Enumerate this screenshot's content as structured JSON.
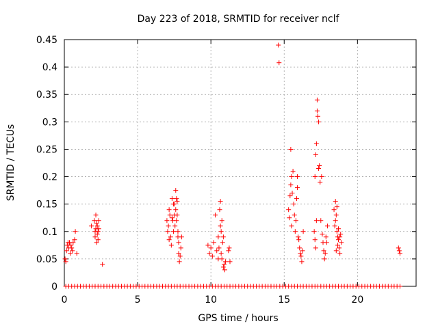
{
  "chart_data": {
    "type": "scatter",
    "title": "Day 223 of 2018, SRMTID for receiver nclf",
    "xlabel": "GPS time / hours",
    "ylabel": "SRMTID / TECUs",
    "xlim": [
      0,
      24
    ],
    "ylim": [
      0,
      0.45
    ],
    "grid": true,
    "marker": "+",
    "marker_color": "#ff0000",
    "x_ticks": [
      0,
      5,
      10,
      15,
      20
    ],
    "x_tick_labels": [
      "0",
      "5",
      "10",
      "15",
      "20"
    ],
    "y_ticks": [
      0,
      0.05,
      0.1,
      0.15,
      0.2,
      0.25,
      0.3,
      0.35,
      0.4,
      0.45
    ],
    "y_tick_labels": [
      "0",
      "0.05",
      "0.1",
      "0.15",
      "0.2",
      "0.25",
      "0.3",
      "0.35",
      "0.4",
      "0.45"
    ],
    "series": [
      {
        "name": "SRMTID",
        "x": [
          0.05,
          0.1,
          0.15,
          0.2,
          0.25,
          0.3,
          0.35,
          0.4,
          0.45,
          0.5,
          0.55,
          0.6,
          0.7,
          0.75,
          0.85,
          1.85,
          2.05,
          2.1,
          2.1,
          2.15,
          2.15,
          2.2,
          2.2,
          2.25,
          2.25,
          2.3,
          2.3,
          2.35,
          2.35,
          2.6,
          7.0,
          7.05,
          7.1,
          7.15,
          7.15,
          7.2,
          7.25,
          7.3,
          7.35,
          7.4,
          7.45,
          7.5,
          7.5,
          7.55,
          7.6,
          7.6,
          7.65,
          7.65,
          7.7,
          7.7,
          7.75,
          7.75,
          7.8,
          7.8,
          7.85,
          7.9,
          7.95,
          8.0,
          7.35,
          7.45,
          9.8,
          9.9,
          10.0,
          10.1,
          10.2,
          10.3,
          10.4,
          10.5,
          10.5,
          10.55,
          10.6,
          10.65,
          10.7,
          10.7,
          10.75,
          10.8,
          10.85,
          10.9,
          10.95,
          11.0,
          10.65,
          10.75,
          10.85,
          11.2,
          11.25,
          11.3,
          14.6,
          14.65,
          15.3,
          15.35,
          15.4,
          15.45,
          15.5,
          15.5,
          15.55,
          15.6,
          15.65,
          15.7,
          15.75,
          15.8,
          15.85,
          15.9,
          15.95,
          16.0,
          16.05,
          16.1,
          16.15,
          16.2,
          16.25,
          16.3,
          15.45,
          15.9,
          17.05,
          17.1,
          17.1,
          17.15,
          17.15,
          17.2,
          17.2,
          17.25,
          17.3,
          17.35,
          17.4,
          17.45,
          17.5,
          17.55,
          17.6,
          17.65,
          17.7,
          17.75,
          17.8,
          17.85,
          17.9,
          17.95,
          17.25,
          17.35,
          18.4,
          18.45,
          18.5,
          18.55,
          18.6,
          18.65,
          18.7,
          18.75,
          18.8,
          18.85,
          18.9,
          18.5,
          18.6,
          18.7,
          18.8,
          18.55,
          18.65,
          22.8,
          22.85,
          22.9,
          0.1,
          0.3,
          0.5,
          0.7,
          0.9,
          1.1,
          1.3,
          1.5,
          1.7,
          1.9,
          2.1,
          2.3,
          2.5,
          2.7,
          2.9,
          3.1,
          3.3,
          3.5,
          3.7,
          3.9,
          4.1,
          4.3,
          4.5,
          4.7,
          4.9,
          5.1,
          5.3,
          5.5,
          5.7,
          5.9,
          6.1,
          6.3,
          6.5,
          6.7,
          6.9,
          7.1,
          7.3,
          7.5,
          7.7,
          7.9,
          8.1,
          8.3,
          8.5,
          8.7,
          8.9,
          9.1,
          9.3,
          9.5,
          9.7,
          9.9,
          10.1,
          10.3,
          10.5,
          10.7,
          10.9,
          11.1,
          11.3,
          11.5,
          11.7,
          11.9,
          12.1,
          12.3,
          12.5,
          12.7,
          12.9,
          13.1,
          13.3,
          13.5,
          13.7,
          13.9,
          14.1,
          14.3,
          14.5,
          14.7,
          14.9,
          15.1,
          15.3,
          15.5,
          15.7,
          15.9,
          16.1,
          16.3,
          16.5,
          16.7,
          16.9,
          17.1,
          17.3,
          17.5,
          17.7,
          17.9,
          18.1,
          18.3,
          18.5,
          18.7,
          18.9,
          19.1,
          19.3,
          19.5,
          19.7,
          19.9,
          20.1,
          20.3,
          20.5,
          20.7,
          20.9,
          21.1,
          21.3,
          21.5,
          21.7,
          21.9,
          22.1,
          22.3,
          22.5,
          22.7,
          22.9
        ],
        "y": [
          0.05,
          0.045,
          0.065,
          0.075,
          0.08,
          0.07,
          0.08,
          0.06,
          0.075,
          0.07,
          0.065,
          0.08,
          0.085,
          0.1,
          0.06,
          0.11,
          0.12,
          0.1,
          0.09,
          0.13,
          0.105,
          0.115,
          0.08,
          0.095,
          0.11,
          0.1,
          0.085,
          0.12,
          0.105,
          0.04,
          0.12,
          0.1,
          0.11,
          0.085,
          0.14,
          0.13,
          0.09,
          0.075,
          0.16,
          0.12,
          0.1,
          0.15,
          0.13,
          0.11,
          0.175,
          0.14,
          0.16,
          0.12,
          0.155,
          0.13,
          0.1,
          0.09,
          0.08,
          0.06,
          0.045,
          0.055,
          0.07,
          0.09,
          0.125,
          0.15,
          0.075,
          0.06,
          0.07,
          0.055,
          0.08,
          0.13,
          0.065,
          0.09,
          0.05,
          0.07,
          0.14,
          0.155,
          0.1,
          0.06,
          0.12,
          0.08,
          0.09,
          0.04,
          0.03,
          0.045,
          0.11,
          0.05,
          0.035,
          0.065,
          0.07,
          0.045,
          0.44,
          0.408,
          0.14,
          0.125,
          0.165,
          0.25,
          0.2,
          0.11,
          0.17,
          0.21,
          0.15,
          0.13,
          0.1,
          0.12,
          0.16,
          0.18,
          0.09,
          0.085,
          0.07,
          0.06,
          0.055,
          0.045,
          0.065,
          0.1,
          0.185,
          0.2,
          0.1,
          0.085,
          0.2,
          0.07,
          0.24,
          0.12,
          0.26,
          0.34,
          0.31,
          0.3,
          0.22,
          0.19,
          0.12,
          0.2,
          0.095,
          0.08,
          0.065,
          0.05,
          0.06,
          0.09,
          0.08,
          0.11,
          0.32,
          0.215,
          0.14,
          0.11,
          0.12,
          0.13,
          0.1,
          0.09,
          0.085,
          0.07,
          0.06,
          0.095,
          0.08,
          0.155,
          0.145,
          0.105,
          0.09,
          0.065,
          0.075,
          0.07,
          0.065,
          0.06,
          0,
          0,
          0,
          0,
          0,
          0,
          0,
          0,
          0,
          0,
          0,
          0,
          0,
          0,
          0,
          0,
          0,
          0,
          0,
          0,
          0,
          0,
          0,
          0,
          0,
          0,
          0,
          0,
          0,
          0,
          0,
          0,
          0,
          0,
          0,
          0,
          0,
          0,
          0,
          0,
          0,
          0,
          0,
          0,
          0,
          0,
          0,
          0,
          0,
          0,
          0,
          0,
          0,
          0,
          0,
          0,
          0,
          0,
          0,
          0,
          0,
          0,
          0,
          0,
          0,
          0,
          0,
          0,
          0,
          0,
          0,
          0,
          0,
          0,
          0,
          0,
          0,
          0,
          0,
          0,
          0,
          0,
          0,
          0,
          0,
          0,
          0,
          0,
          0,
          0,
          0,
          0,
          0,
          0,
          0,
          0,
          0,
          0,
          0,
          0,
          0,
          0,
          0,
          0,
          0,
          0,
          0,
          0,
          0,
          0,
          0,
          0,
          0,
          0,
          0
        ]
      }
    ]
  }
}
